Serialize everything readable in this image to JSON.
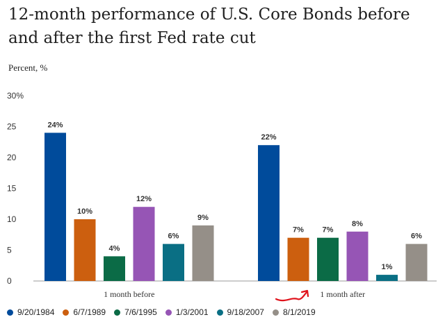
{
  "title_line1": "12-month performance of U.S. Core Bonds before",
  "title_line2": "and after the first Fed rate cut",
  "chart_data": {
    "type": "bar",
    "title": "12-month performance of U.S. Core Bonds before and after the first Fed rate cut",
    "ylabel": "Percent, %",
    "ylim": [
      0,
      30
    ],
    "yticks": [
      "0",
      "5",
      "10",
      "15",
      "20",
      "25",
      "30%"
    ],
    "grid": false,
    "legend_position": "bottom",
    "categories": [
      "1 month before",
      "1 month after"
    ],
    "series": [
      {
        "name": "9/20/1984",
        "color": "#004b9b",
        "values": [
          24,
          22
        ],
        "labels": [
          "24%",
          "22%"
        ]
      },
      {
        "name": "6/7/1989",
        "color": "#cc5f0f",
        "values": [
          10,
          7
        ],
        "labels": [
          "10%",
          "7%"
        ]
      },
      {
        "name": "7/6/1995",
        "color": "#0b6b46",
        "values": [
          4,
          7
        ],
        "labels": [
          "4%",
          "7%"
        ]
      },
      {
        "name": "1/3/2001",
        "color": "#9655b5",
        "values": [
          12,
          8
        ],
        "labels": [
          "12%",
          "8%"
        ]
      },
      {
        "name": "9/18/2007",
        "color": "#0a6f84",
        "values": [
          6,
          1
        ],
        "labels": [
          "6%",
          "1%"
        ]
      },
      {
        "name": "8/1/2019",
        "color": "#958f88",
        "values": [
          9,
          6
        ],
        "labels": [
          "9%",
          "6%"
        ]
      }
    ]
  },
  "annotation": {
    "type": "red-arrow",
    "color": "#e0121b",
    "points_to": "1 month after"
  }
}
